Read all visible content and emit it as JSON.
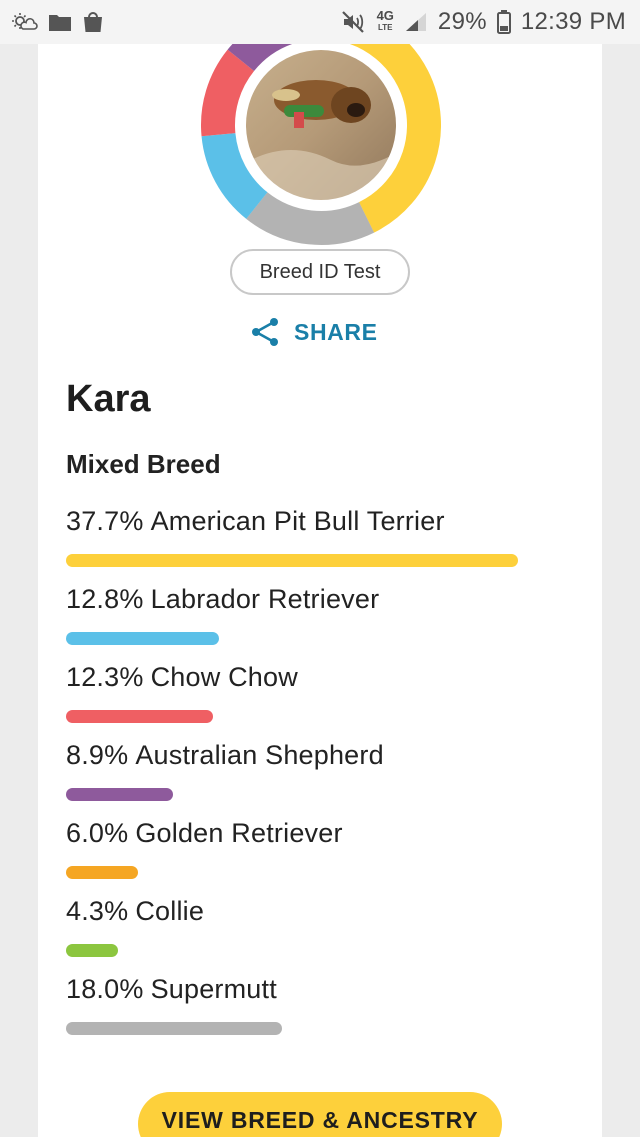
{
  "status_bar": {
    "battery_percent": "29%",
    "time": "12:39 PM",
    "network": "4G",
    "network_sub": "LTE",
    "icons": [
      "weather-icon",
      "folder-icon",
      "shopping-bag-icon",
      "mute-icon",
      "signal-icon",
      "battery-icon"
    ]
  },
  "profile": {
    "test_badge": "Breed ID Test",
    "share_label": "SHARE",
    "dog_name": "Kara",
    "breed_type": "Mixed Breed"
  },
  "breeds": [
    {
      "percent": "37.7%",
      "name": "American Pit Bull Terrier",
      "value": 37.7,
      "color": "#fdd03b"
    },
    {
      "percent": "12.8%",
      "name": "Labrador Retriever",
      "value": 12.8,
      "color": "#5bc0e8"
    },
    {
      "percent": "12.3%",
      "name": "Chow Chow",
      "value": 12.3,
      "color": "#ef5f63"
    },
    {
      "percent": "8.9%",
      "name": "Australian Shepherd",
      "value": 8.9,
      "color": "#8e5a9c"
    },
    {
      "percent": "6.0%",
      "name": "Golden Retriever",
      "value": 6.0,
      "color": "#f5a623"
    },
    {
      "percent": "4.3%",
      "name": "Collie",
      "value": 4.3,
      "color": "#8cc63f"
    },
    {
      "percent": "18.0%",
      "name": "Supermutt",
      "value": 18.0,
      "color": "#b3b3b3"
    }
  ],
  "cta": {
    "label": "VIEW BREED & ANCESTRY"
  },
  "colors": {
    "accent": "#1a7fa8",
    "cta": "#fdd03b"
  }
}
